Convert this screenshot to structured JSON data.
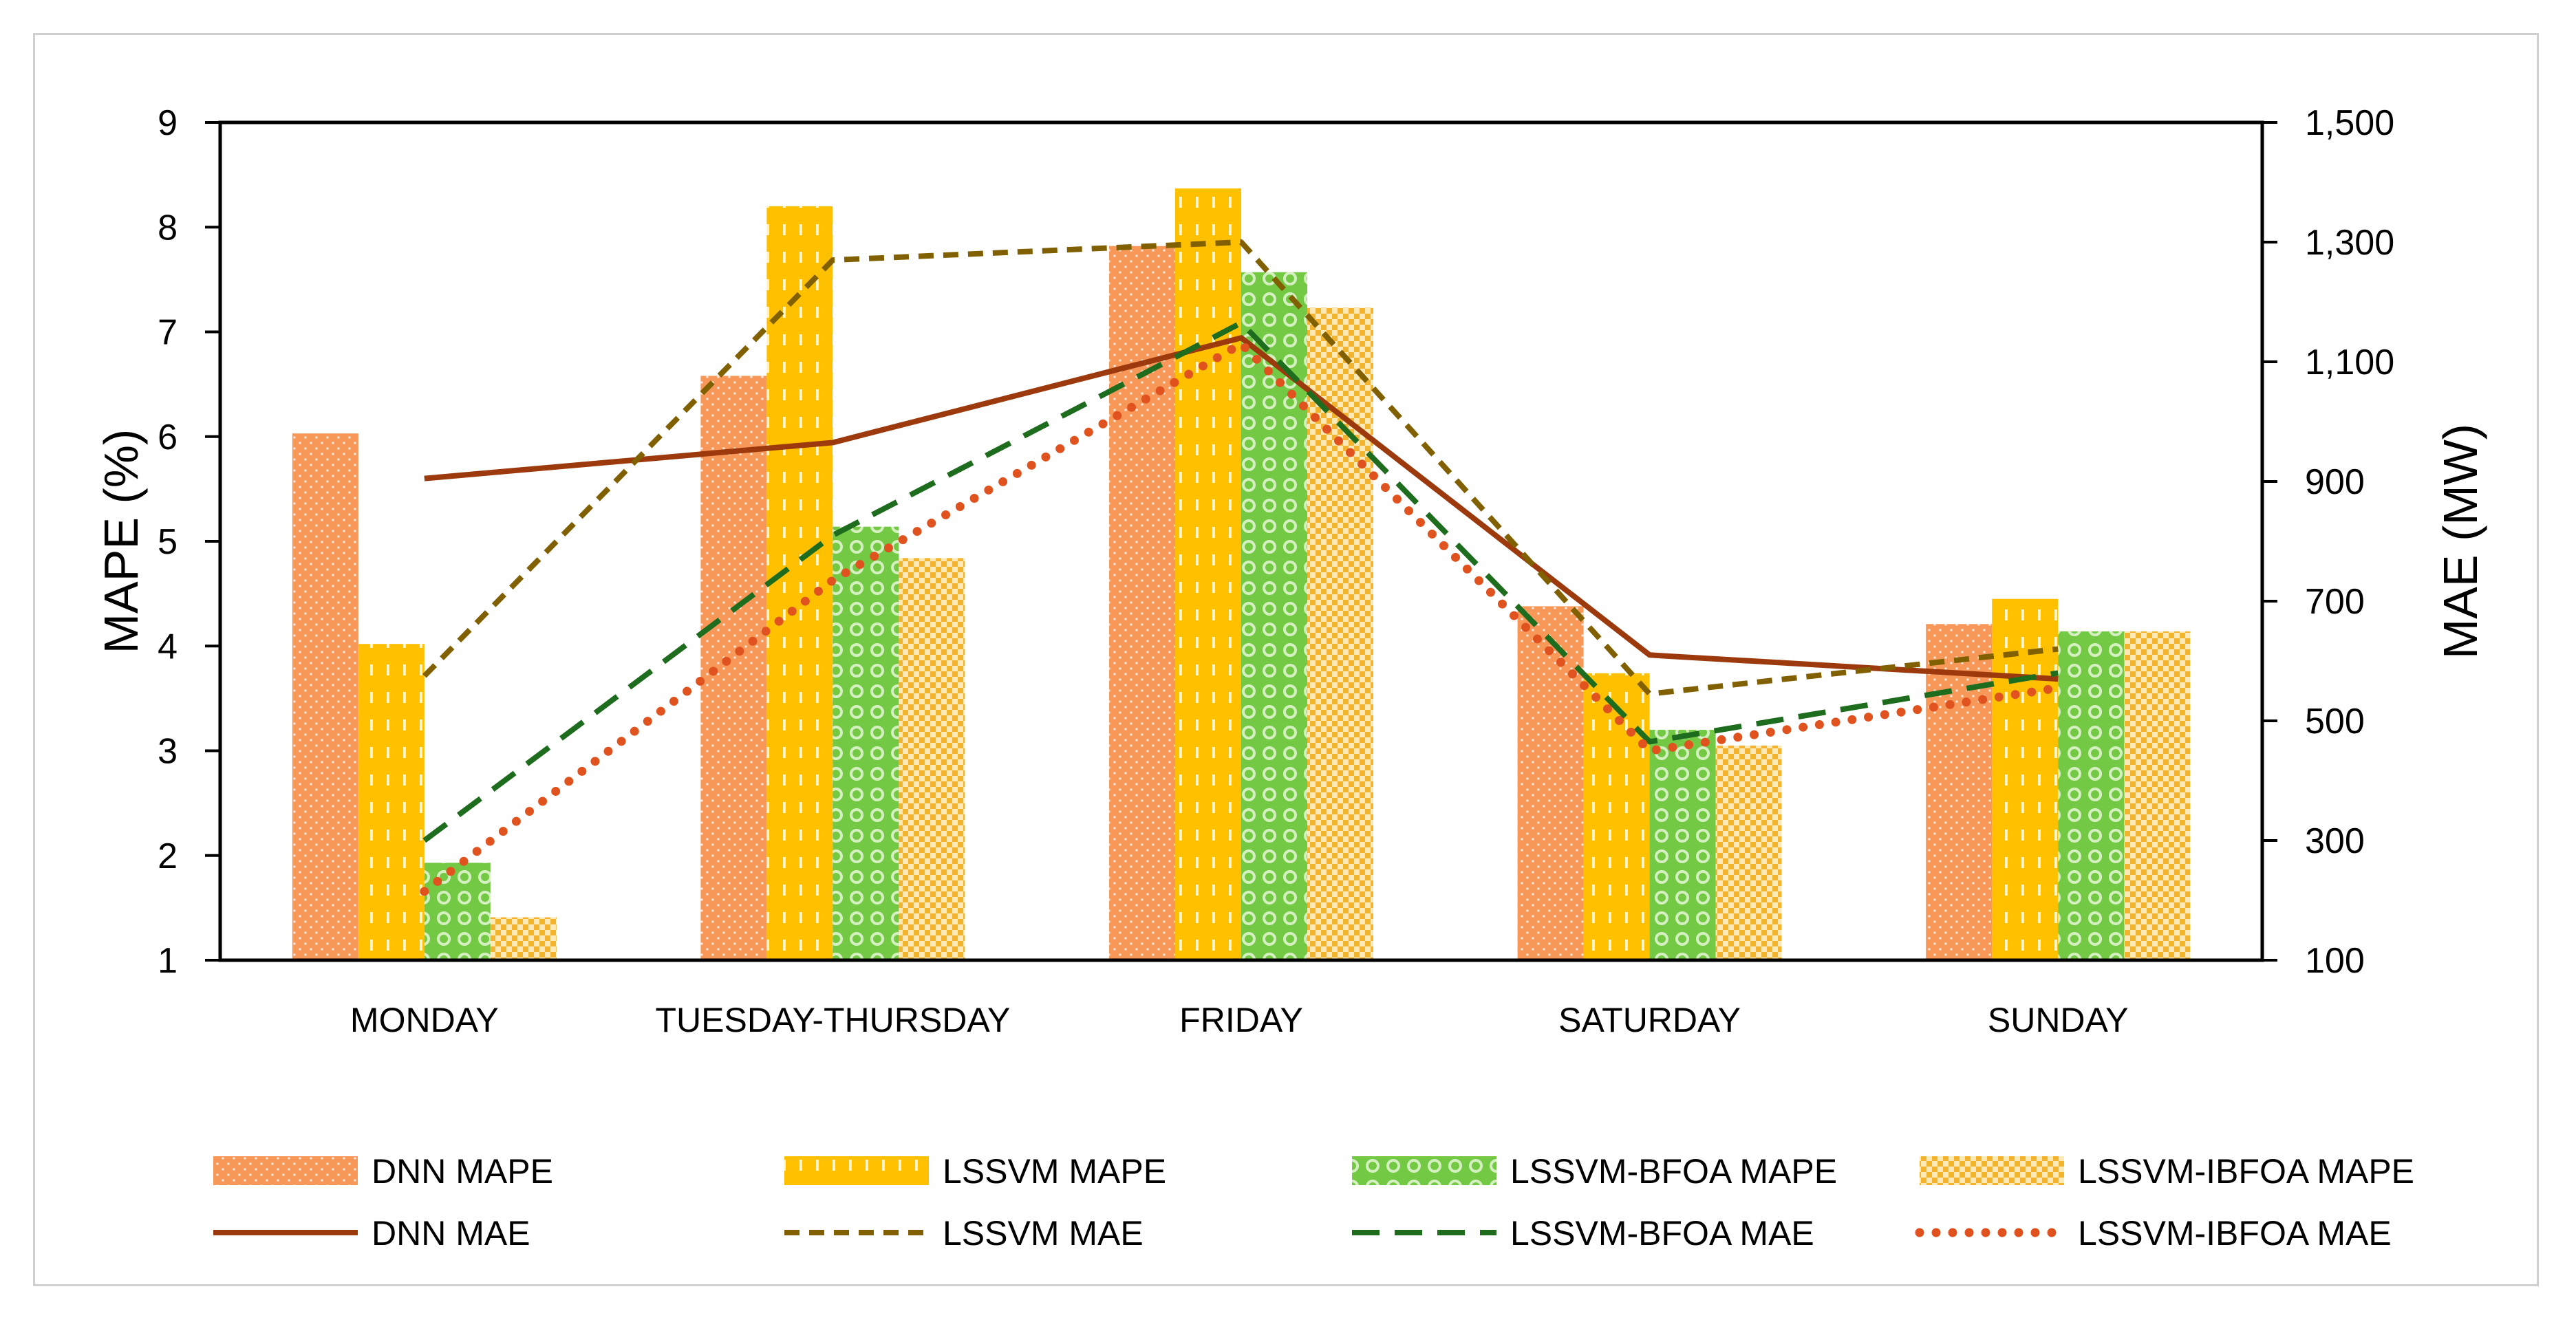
{
  "chart_data": {
    "type": "bar",
    "categories": [
      "MONDAY",
      "TUESDAY-THURSDAY",
      "FRIDAY",
      "SATURDAY",
      "SUNDAY"
    ],
    "ylabel_left": "MAPE (%)",
    "ylabel_right": "MAE (MW)",
    "ylim_left": [
      1,
      9
    ],
    "ylim_right": [
      100,
      1500
    ],
    "yticks_left": [
      "1",
      "2",
      "3",
      "4",
      "5",
      "6",
      "7",
      "8",
      "9"
    ],
    "yticks_right": [
      "100",
      "300",
      "500",
      "700",
      "900",
      "1,100",
      "1,300",
      "1,500"
    ],
    "grid": false,
    "legend_position": "bottom",
    "bar_series": [
      {
        "name": "DNN MAPE",
        "color": "#F79859",
        "pattern": "dots",
        "values": [
          6.03,
          6.58,
          7.82,
          4.38,
          4.21
        ]
      },
      {
        "name": "LSSVM MAPE",
        "color": "#FFC000",
        "pattern": "dashes",
        "values": [
          4.02,
          8.2,
          8.37,
          3.74,
          4.45
        ]
      },
      {
        "name": "LSSVM-BFOA MAPE",
        "color": "#74C944",
        "pattern": "circles",
        "values": [
          1.93,
          5.14,
          7.57,
          3.2,
          4.14
        ]
      },
      {
        "name": "LSSVM-IBFOA MAPE",
        "color": "#F2B32E",
        "pattern": "checks",
        "values": [
          1.41,
          4.84,
          7.23,
          3.05,
          4.14
        ]
      }
    ],
    "line_series": [
      {
        "name": "DNN MAE",
        "color": "#9C3A0E",
        "style": "solid",
        "values": [
          905,
          965,
          1140,
          610,
          570
        ]
      },
      {
        "name": "LSSVM MAE",
        "color": "#806000",
        "style": "dash",
        "values": [
          575,
          1270,
          1300,
          545,
          620
        ]
      },
      {
        "name": "LSSVM-BFOA MAE",
        "color": "#1E6C1E",
        "style": "longdash",
        "values": [
          300,
          810,
          1165,
          465,
          580
        ]
      },
      {
        "name": "LSSVM-IBFOA MAE",
        "color": "#E0531F",
        "style": "dots",
        "values": [
          215,
          735,
          1130,
          450,
          555
        ]
      }
    ]
  }
}
